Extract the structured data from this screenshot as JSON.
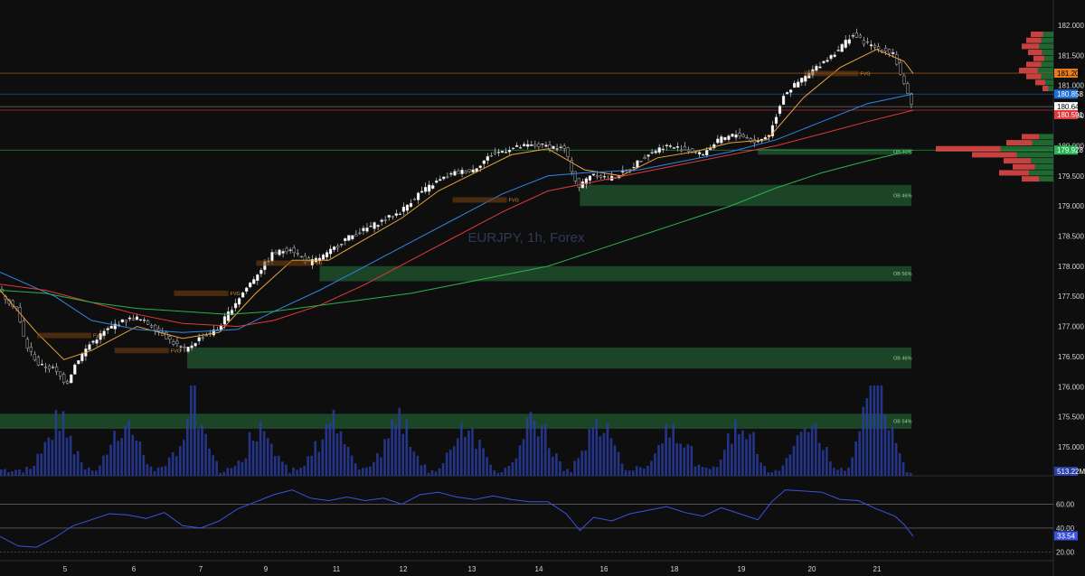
{
  "chart_data": {
    "type": "candlestick",
    "watermark": "EURJPY, 1h, Forex",
    "x_ticks": [
      "5",
      "6",
      "7",
      "9",
      "11",
      "12",
      "13",
      "14",
      "16",
      "18",
      "19",
      "20",
      "21"
    ],
    "price_axis": {
      "ticks": [
        "182.000",
        "181.500",
        "181.000",
        "180.500",
        "180.000",
        "179.500",
        "179.000",
        "178.500",
        "178.000",
        "177.500",
        "177.000",
        "176.500",
        "176.000",
        "175.500",
        "175.000"
      ],
      "range": [
        174.8,
        182.2
      ]
    },
    "price_tags": [
      {
        "value": "181.205",
        "color": "#e87d1e",
        "text_color": "#000000"
      },
      {
        "value": "180.858",
        "color": "#1e6fd9",
        "text_color": "#ffffff"
      },
      {
        "value": "180.649",
        "color": "#ffffff",
        "text_color": "#000000"
      },
      {
        "value": "180.591",
        "color": "#e03a3a",
        "text_color": "#ffffff"
      },
      {
        "value": "179.928",
        "color": "#26b553",
        "text_color": "#ffffff"
      }
    ],
    "volume_tag": "513.22M",
    "rsi": {
      "levels": [
        "60.00",
        "40.00",
        "20.00"
      ],
      "level_values": [
        60,
        40,
        20
      ],
      "current": "33.54",
      "range": [
        15,
        80
      ]
    },
    "order_blocks": [
      {
        "label": "OB 46%",
        "top": 179.95,
        "bottom": 179.85,
        "start": 0.83
      },
      {
        "label": "OB 46%",
        "top": 179.35,
        "bottom": 179.0,
        "start": 0.635
      },
      {
        "label": "OB 56%",
        "top": 178.0,
        "bottom": 177.75,
        "start": 0.35
      },
      {
        "label": "OB 46%",
        "top": 176.65,
        "bottom": 176.3,
        "start": 0.205
      },
      {
        "label": "OB 54%",
        "top": 175.55,
        "bottom": 175.3,
        "start": 0.0
      }
    ],
    "fvg_labels": [
      "FVG",
      "FVG",
      "FVG",
      "FVG",
      "FVG",
      "FVG"
    ],
    "horizontal_lines": [
      {
        "value": 181.205,
        "color": "#e87d1e"
      },
      {
        "value": 180.858,
        "color": "#1e6fd9"
      },
      {
        "value": 180.649,
        "color": "#888888"
      },
      {
        "value": 180.591,
        "color": "#e03a3a"
      },
      {
        "value": 179.928,
        "color": "#26b553"
      }
    ],
    "price_path": [
      [
        0.0,
        177.6
      ],
      [
        0.02,
        177.3
      ],
      [
        0.03,
        176.7
      ],
      [
        0.045,
        176.35
      ],
      [
        0.06,
        176.3
      ],
      [
        0.075,
        176.05
      ],
      [
        0.085,
        176.4
      ],
      [
        0.1,
        176.7
      ],
      [
        0.115,
        176.9
      ],
      [
        0.13,
        177.05
      ],
      [
        0.15,
        177.15
      ],
      [
        0.17,
        177.0
      ],
      [
        0.19,
        176.75
      ],
      [
        0.205,
        176.6
      ],
      [
        0.22,
        176.8
      ],
      [
        0.24,
        176.95
      ],
      [
        0.26,
        177.4
      ],
      [
        0.28,
        177.8
      ],
      [
        0.3,
        178.2
      ],
      [
        0.32,
        178.3
      ],
      [
        0.34,
        178.05
      ],
      [
        0.36,
        178.2
      ],
      [
        0.38,
        178.45
      ],
      [
        0.4,
        178.6
      ],
      [
        0.42,
        178.75
      ],
      [
        0.44,
        178.9
      ],
      [
        0.46,
        179.2
      ],
      [
        0.48,
        179.4
      ],
      [
        0.5,
        179.55
      ],
      [
        0.52,
        179.6
      ],
      [
        0.54,
        179.85
      ],
      [
        0.56,
        179.95
      ],
      [
        0.58,
        180.0
      ],
      [
        0.6,
        180.0
      ],
      [
        0.62,
        179.95
      ],
      [
        0.635,
        179.3
      ],
      [
        0.65,
        179.55
      ],
      [
        0.67,
        179.45
      ],
      [
        0.69,
        179.6
      ],
      [
        0.71,
        179.85
      ],
      [
        0.73,
        180.0
      ],
      [
        0.75,
        179.95
      ],
      [
        0.77,
        179.85
      ],
      [
        0.79,
        180.1
      ],
      [
        0.81,
        180.2
      ],
      [
        0.83,
        180.05
      ],
      [
        0.845,
        180.2
      ],
      [
        0.86,
        180.85
      ],
      [
        0.88,
        181.1
      ],
      [
        0.9,
        181.35
      ],
      [
        0.92,
        181.6
      ],
      [
        0.935,
        181.85
      ],
      [
        0.95,
        181.7
      ],
      [
        0.965,
        181.6
      ],
      [
        0.98,
        181.55
      ],
      [
        0.99,
        181.1
      ],
      [
        1.0,
        180.65
      ]
    ],
    "ema_fast": [
      [
        0.0,
        177.6
      ],
      [
        0.04,
        176.9
      ],
      [
        0.07,
        176.45
      ],
      [
        0.1,
        176.6
      ],
      [
        0.15,
        177.0
      ],
      [
        0.2,
        176.8
      ],
      [
        0.24,
        176.9
      ],
      [
        0.28,
        177.55
      ],
      [
        0.32,
        178.1
      ],
      [
        0.36,
        178.1
      ],
      [
        0.4,
        178.45
      ],
      [
        0.44,
        178.8
      ],
      [
        0.48,
        179.25
      ],
      [
        0.52,
        179.55
      ],
      [
        0.56,
        179.85
      ],
      [
        0.6,
        179.95
      ],
      [
        0.64,
        179.6
      ],
      [
        0.68,
        179.5
      ],
      [
        0.72,
        179.8
      ],
      [
        0.76,
        179.9
      ],
      [
        0.8,
        180.05
      ],
      [
        0.84,
        180.1
      ],
      [
        0.88,
        180.8
      ],
      [
        0.92,
        181.3
      ],
      [
        0.96,
        181.6
      ],
      [
        0.99,
        181.4
      ],
      [
        1.0,
        181.2
      ]
    ],
    "ema_mid": [
      [
        0.0,
        177.9
      ],
      [
        0.06,
        177.5
      ],
      [
        0.1,
        177.1
      ],
      [
        0.15,
        176.95
      ],
      [
        0.2,
        176.9
      ],
      [
        0.26,
        176.95
      ],
      [
        0.3,
        177.25
      ],
      [
        0.35,
        177.6
      ],
      [
        0.4,
        178.0
      ],
      [
        0.45,
        178.4
      ],
      [
        0.5,
        178.8
      ],
      [
        0.55,
        179.2
      ],
      [
        0.6,
        179.5
      ],
      [
        0.64,
        179.55
      ],
      [
        0.7,
        179.6
      ],
      [
        0.75,
        179.75
      ],
      [
        0.8,
        179.9
      ],
      [
        0.85,
        180.1
      ],
      [
        0.9,
        180.4
      ],
      [
        0.95,
        180.7
      ],
      [
        1.0,
        180.86
      ]
    ],
    "ema_slow": [
      [
        0.0,
        177.7
      ],
      [
        0.05,
        177.6
      ],
      [
        0.1,
        177.4
      ],
      [
        0.15,
        177.2
      ],
      [
        0.2,
        177.05
      ],
      [
        0.26,
        177.0
      ],
      [
        0.3,
        177.1
      ],
      [
        0.35,
        177.35
      ],
      [
        0.4,
        177.7
      ],
      [
        0.45,
        178.1
      ],
      [
        0.5,
        178.5
      ],
      [
        0.55,
        178.9
      ],
      [
        0.6,
        179.25
      ],
      [
        0.65,
        179.4
      ],
      [
        0.7,
        179.55
      ],
      [
        0.75,
        179.7
      ],
      [
        0.8,
        179.85
      ],
      [
        0.85,
        180.0
      ],
      [
        0.9,
        180.2
      ],
      [
        0.95,
        180.4
      ],
      [
        1.0,
        180.59
      ]
    ],
    "ema_long": [
      [
        0.0,
        177.6
      ],
      [
        0.05,
        177.55
      ],
      [
        0.1,
        177.4
      ],
      [
        0.15,
        177.3
      ],
      [
        0.2,
        177.25
      ],
      [
        0.25,
        177.2
      ],
      [
        0.3,
        177.25
      ],
      [
        0.35,
        177.35
      ],
      [
        0.4,
        177.45
      ],
      [
        0.45,
        177.55
      ],
      [
        0.5,
        177.7
      ],
      [
        0.55,
        177.85
      ],
      [
        0.6,
        178.0
      ],
      [
        0.65,
        178.25
      ],
      [
        0.7,
        178.5
      ],
      [
        0.75,
        178.75
      ],
      [
        0.8,
        179.0
      ],
      [
        0.85,
        179.3
      ],
      [
        0.9,
        179.55
      ],
      [
        0.95,
        179.75
      ],
      [
        1.0,
        179.93
      ]
    ],
    "volume_spikes": [
      0.063,
      0.135,
      0.21,
      0.285,
      0.36,
      0.435,
      0.51,
      0.585,
      0.655,
      0.735,
      0.81,
      0.885,
      0.955,
      0.962
    ],
    "rsi_path": [
      [
        0.0,
        33
      ],
      [
        0.02,
        25
      ],
      [
        0.04,
        24
      ],
      [
        0.06,
        32
      ],
      [
        0.08,
        42
      ],
      [
        0.1,
        47
      ],
      [
        0.12,
        52
      ],
      [
        0.14,
        51
      ],
      [
        0.16,
        48
      ],
      [
        0.18,
        53
      ],
      [
        0.2,
        42
      ],
      [
        0.22,
        40
      ],
      [
        0.24,
        46
      ],
      [
        0.26,
        56
      ],
      [
        0.28,
        62
      ],
      [
        0.3,
        68
      ],
      [
        0.32,
        72
      ],
      [
        0.34,
        65
      ],
      [
        0.36,
        63
      ],
      [
        0.38,
        66
      ],
      [
        0.4,
        63
      ],
      [
        0.42,
        65
      ],
      [
        0.44,
        60
      ],
      [
        0.46,
        68
      ],
      [
        0.48,
        70
      ],
      [
        0.5,
        66
      ],
      [
        0.52,
        64
      ],
      [
        0.54,
        67
      ],
      [
        0.56,
        64
      ],
      [
        0.58,
        62
      ],
      [
        0.6,
        62
      ],
      [
        0.62,
        52
      ],
      [
        0.635,
        38
      ],
      [
        0.65,
        49
      ],
      [
        0.67,
        46
      ],
      [
        0.69,
        52
      ],
      [
        0.71,
        55
      ],
      [
        0.73,
        58
      ],
      [
        0.75,
        53
      ],
      [
        0.77,
        50
      ],
      [
        0.79,
        57
      ],
      [
        0.81,
        52
      ],
      [
        0.83,
        47
      ],
      [
        0.845,
        62
      ],
      [
        0.86,
        72
      ],
      [
        0.88,
        71
      ],
      [
        0.9,
        70
      ],
      [
        0.92,
        64
      ],
      [
        0.94,
        63
      ],
      [
        0.96,
        56
      ],
      [
        0.98,
        50
      ],
      [
        0.99,
        43
      ],
      [
        1.0,
        33
      ]
    ]
  }
}
